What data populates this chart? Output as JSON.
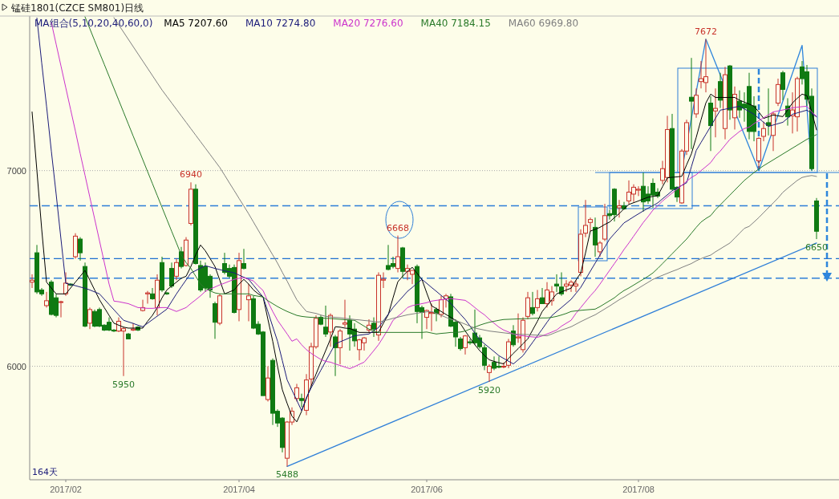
{
  "chart_data": {
    "type": "candlestick",
    "title": "锰硅1801(CZCE SM801)日线",
    "legend_title": "MA组合(5,10,20,40,60,0)",
    "legend": "top left",
    "grid": "y",
    "ylim": [
      5420,
      7790
    ],
    "yticks": [
      6000,
      7000
    ],
    "categories": [
      null,
      null,
      null,
      null,
      null,
      null,
      null,
      "2017/02",
      null,
      null,
      null,
      null,
      null,
      null,
      null,
      null,
      null,
      null,
      null,
      null,
      null,
      null,
      null,
      null,
      null,
      null,
      null,
      null,
      null,
      null,
      null,
      null,
      null,
      null,
      null,
      null,
      null,
      null,
      null,
      null,
      null,
      null,
      null,
      "2017/04",
      null,
      null,
      null,
      null,
      null,
      null,
      null,
      null,
      null,
      null,
      null,
      null,
      null,
      null,
      null,
      null,
      null,
      null,
      null,
      null,
      null,
      null,
      null,
      null,
      null,
      null,
      null,
      null,
      null,
      null,
      null,
      null,
      null,
      null,
      null,
      null,
      null,
      null,
      "2017/06",
      null,
      null,
      null,
      null,
      null,
      null,
      null,
      null,
      null,
      null,
      null,
      null,
      null,
      null,
      null,
      null,
      null,
      null,
      null,
      null,
      null,
      null,
      null,
      null,
      null,
      null,
      null,
      null,
      null,
      null,
      null,
      null,
      null,
      null,
      null,
      null,
      null,
      null,
      null,
      null,
      null,
      null,
      null,
      "2017/08",
      null,
      null,
      null,
      null,
      null,
      null,
      null,
      null,
      null,
      null,
      null,
      null,
      null,
      null,
      null,
      null,
      null,
      null,
      null,
      null,
      null,
      null,
      null,
      null,
      null,
      null,
      null,
      null,
      null,
      null,
      null,
      null,
      null,
      null,
      null,
      null,
      null
    ],
    "ohlc": [
      [
        6430,
        6470,
        6400,
        6440
      ],
      [
        6580,
        6620,
        6370,
        6380
      ],
      [
        6390,
        6400,
        6360,
        6370
      ],
      [
        6310,
        6380,
        6300,
        6335
      ],
      [
        6430,
        6440,
        6260,
        6265
      ],
      [
        6350,
        6370,
        6250,
        6260
      ],
      [
        6330,
        6335,
        6250,
        6330
      ],
      [
        6370,
        6480,
        6360,
        6425
      ],
      [
        6420,
        6425,
        6410,
        6415
      ],
      [
        6560,
        6680,
        6550,
        6665
      ],
      [
        6650,
        6660,
        6540,
        6580
      ],
      [
        6510,
        6530,
        6200,
        6205
      ],
      [
        6220,
        6300,
        6190,
        6290
      ],
      [
        6280,
        6290,
        6200,
        6205
      ],
      [
        6290,
        6300,
        6200,
        6205
      ],
      [
        6210,
        6215,
        6180,
        6185
      ],
      [
        6225,
        6250,
        6180,
        6185
      ],
      [
        6185,
        6190,
        6175,
        6180
      ],
      [
        6180,
        6250,
        6175,
        6230
      ],
      [
        6180,
        6200,
        5950,
        6192
      ],
      [
        6165,
        6170,
        6140,
        6140
      ],
      [
        6185,
        6220,
        6180,
        6190
      ],
      [
        6200,
        6205,
        6180,
        6185
      ],
      [
        6285,
        6340,
        6280,
        6300
      ],
      [
        6370,
        6385,
        6320,
        6375
      ],
      [
        6370,
        6400,
        6340,
        6345
      ],
      [
        6300,
        6470,
        6260,
        6440
      ],
      [
        6530,
        6560,
        6380,
        6390
      ],
      [
        6375,
        6380,
        6365,
        6370
      ],
      [
        6500,
        6530,
        6400,
        6410
      ],
      [
        6460,
        6550,
        6440,
        6530
      ],
      [
        6585,
        6610,
        6500,
        6510
      ],
      [
        6515,
        6660,
        6510,
        6645
      ],
      [
        6730,
        6940,
        6720,
        6905
      ],
      [
        6905,
        6930,
        6520,
        6525
      ],
      [
        6515,
        6540,
        6380,
        6390
      ],
      [
        6510,
        6530,
        6380,
        6400
      ],
      [
        6460,
        6470,
        6350,
        6390
      ],
      [
        6320,
        6330,
        6140,
        6225
      ],
      [
        6220,
        6370,
        6210,
        6360
      ],
      [
        6525,
        6580,
        6470,
        6480
      ],
      [
        6500,
        6520,
        6450,
        6460
      ],
      [
        6505,
        6520,
        6270,
        6275
      ],
      [
        6290,
        6580,
        6230,
        6540
      ],
      [
        6525,
        6600,
        6495,
        6500
      ],
      [
        6340,
        6420,
        6230,
        6360
      ],
      [
        6345,
        6360,
        6190,
        6195
      ],
      [
        6215,
        6230,
        6160,
        6165
      ],
      [
        6175,
        6180,
        5850,
        5850
      ],
      [
        5830,
        6000,
        5820,
        5940
      ],
      [
        6030,
        6040,
        5700,
        5760
      ],
      [
        5770,
        5780,
        5690,
        5710
      ],
      [
        5735,
        5740,
        5560,
        5585
      ],
      [
        5530,
        5720,
        5488,
        5715
      ],
      [
        5715,
        5790,
        5700,
        5770
      ],
      [
        5835,
        5910,
        5820,
        5890
      ],
      [
        5835,
        5860,
        5790,
        5825
      ],
      [
        5775,
        5960,
        5750,
        5930
      ],
      [
        5935,
        6120,
        5900,
        6100
      ],
      [
        6100,
        6260,
        6090,
        6245
      ],
      [
        6250,
        6260,
        6210,
        6215
      ],
      [
        6200,
        6310,
        6150,
        6165
      ],
      [
        6175,
        6270,
        6100,
        6260
      ],
      [
        6150,
        6160,
        5950,
        6095
      ],
      [
        6095,
        6190,
        6010,
        6180
      ],
      [
        6215,
        6340,
        6200,
        6222
      ],
      [
        6235,
        6260,
        6080,
        6165
      ],
      [
        6190,
        6220,
        6100,
        6130
      ],
      [
        6085,
        6140,
        6030,
        6135
      ],
      [
        6120,
        6150,
        6080,
        6145
      ],
      [
        6185,
        6240,
        6170,
        6210
      ],
      [
        6220,
        6250,
        6150,
        6190
      ],
      [
        6160,
        6480,
        6130,
        6465
      ],
      [
        6440,
        6480,
        6400,
        6445
      ],
      [
        6515,
        6620,
        6490,
        6495
      ],
      [
        6525,
        6560,
        6500,
        6510
      ],
      [
        6500,
        6668,
        6480,
        6560
      ],
      [
        6605,
        6610,
        6450,
        6485
      ],
      [
        6485,
        6520,
        6440,
        6500
      ],
      [
        6470,
        6490,
        6420,
        6490
      ],
      [
        6510,
        6520,
        6220,
        6280
      ],
      [
        6300,
        6310,
        6140,
        6275
      ],
      [
        6250,
        6290,
        6190,
        6285
      ],
      [
        6270,
        6320,
        6180,
        6275
      ],
      [
        6290,
        6300,
        6230,
        6270
      ],
      [
        6265,
        6360,
        6250,
        6340
      ],
      [
        6345,
        6370,
        6300,
        6360
      ],
      [
        6355,
        6370,
        6200,
        6205
      ],
      [
        6225,
        6240,
        6100,
        6150
      ],
      [
        6140,
        6150,
        6080,
        6090
      ],
      [
        6095,
        6160,
        6060,
        6155
      ],
      [
        6125,
        6140,
        6110,
        6120
      ],
      [
        6170,
        6290,
        6110,
        6120
      ],
      [
        6145,
        6160,
        6090,
        6100
      ],
      [
        6095,
        6110,
        5980,
        6005
      ],
      [
        5968,
        6010,
        5920,
        6000
      ],
      [
        6020,
        6050,
        5980,
        5990
      ],
      [
        6000,
        6050,
        5990,
        5995
      ],
      [
        6000,
        6020,
        5990,
        6000
      ],
      [
        6005,
        6140,
        5990,
        6125
      ],
      [
        6180,
        6210,
        6100,
        6110
      ],
      [
        6145,
        6270,
        6120,
        6150
      ],
      [
        6085,
        6250,
        6070,
        6235
      ],
      [
        6255,
        6380,
        6240,
        6350
      ],
      [
        6300,
        6380,
        6260,
        6270
      ],
      [
        6300,
        6390,
        6280,
        6345
      ],
      [
        6350,
        6400,
        6320,
        6320
      ],
      [
        6320,
        6430,
        6300,
        6390
      ],
      [
        6335,
        6410,
        6310,
        6380
      ],
      [
        6420,
        6470,
        6380,
        6410
      ],
      [
        6405,
        6480,
        6360,
        6370
      ],
      [
        6410,
        6440,
        6380,
        6420
      ],
      [
        6415,
        6440,
        6380,
        6430
      ],
      [
        6410,
        6440,
        6380,
        6420
      ],
      [
        6480,
        6700,
        6460,
        6675
      ],
      [
        6680,
        6850,
        6660,
        6720
      ],
      [
        6735,
        6760,
        6690,
        6750
      ],
      [
        6710,
        6760,
        6560,
        6620
      ],
      [
        6585,
        6640,
        6560,
        6630
      ],
      [
        6650,
        6830,
        6640,
        6770
      ],
      [
        6780,
        6800,
        6750,
        6770
      ],
      [
        6905,
        6910,
        6740,
        6775
      ],
      [
        6810,
        6850,
        6760,
        6820
      ],
      [
        6820,
        6840,
        6800,
        6805
      ],
      [
        6845,
        6950,
        6830,
        6890
      ],
      [
        6880,
        6930,
        6840,
        6915
      ],
      [
        6900,
        6920,
        6870,
        6905
      ],
      [
        6920,
        6990,
        6790,
        6840
      ],
      [
        6880,
        6920,
        6830,
        6845
      ],
      [
        6935,
        6960,
        6810,
        6875
      ],
      [
        6890,
        6910,
        6860,
        6870
      ],
      [
        6950,
        7050,
        6930,
        7010
      ],
      [
        6965,
        7280,
        6940,
        7210
      ],
      [
        7215,
        7290,
        6900,
        6905
      ],
      [
        6915,
        6920,
        6840,
        6865
      ],
      [
        6835,
        7110,
        6830,
        7100
      ],
      [
        7100,
        7260,
        7080,
        7245
      ],
      [
        7375,
        7576,
        7110,
        7355
      ],
      [
        7290,
        7420,
        7270,
        7385
      ],
      [
        7455,
        7560,
        7420,
        7470
      ],
      [
        7450,
        7672,
        7400,
        7480
      ],
      [
        7345,
        7380,
        7100,
        7230
      ],
      [
        7305,
        7420,
        7170,
        7318
      ],
      [
        7455,
        7500,
        7320,
        7360
      ],
      [
        7215,
        7530,
        7160,
        7490
      ],
      [
        7535,
        7540,
        7260,
        7310
      ],
      [
        7270,
        7430,
        7210,
        7390
      ],
      [
        7355,
        7410,
        7270,
        7310
      ],
      [
        7340,
        7400,
        7250,
        7320
      ],
      [
        7430,
        7500,
        7160,
        7200
      ],
      [
        7330,
        7380,
        7150,
        7200
      ],
      [
        7050,
        7170,
        7010,
        7165
      ],
      [
        7175,
        7250,
        7150,
        7215
      ],
      [
        7245,
        7420,
        7180,
        7230
      ],
      [
        7180,
        7300,
        7100,
        7290
      ],
      [
        7345,
        7470,
        7330,
        7440
      ],
      [
        7500,
        7510,
        7360,
        7415
      ],
      [
        7330,
        7370,
        7230,
        7275
      ],
      [
        7280,
        7400,
        7190,
        7310
      ],
      [
        7275,
        7480,
        7200,
        7470
      ],
      [
        7530,
        7560,
        7440,
        7470
      ],
      [
        7505,
        7540,
        7330,
        7365
      ],
      [
        7380,
        7420,
        7000,
        7010
      ],
      [
        6845,
        6860,
        6650,
        6690
      ]
    ],
    "series": [
      {
        "name": "MA5 7207.60",
        "type": "line",
        "color": "#000000",
        "values": [
          7300,
          7000,
          6700,
          6430,
          6400,
          6370,
          6370,
          6370,
          6400,
          6430,
          6460,
          6490,
          6440,
          6390,
          6340,
          6300,
          6260,
          6220,
          6210,
          6200,
          6195,
          6195,
          6195,
          6195,
          6230,
          6260,
          6300,
          6350,
          6390,
          6410,
          6430,
          6450,
          6460,
          6510,
          6570,
          6620,
          6590,
          6550,
          6510,
          6440,
          6370,
          6380,
          6390,
          6420,
          6444,
          6420,
          6390,
          6370,
          6354,
          6240,
          6128,
          6000,
          5880,
          5810,
          5745,
          5716,
          5770,
          5835,
          5900,
          5960,
          6021,
          6080,
          6140,
          6202,
          6200,
          6195,
          6193,
          6183,
          6173,
          6173,
          6173,
          6173,
          6173,
          6220,
          6263,
          6350,
          6432,
          6460,
          6485,
          6506,
          6475,
          6444,
          6375,
          6309,
          6295,
          6280,
          6265,
          6250,
          6235,
          6218,
          6180,
          6145,
          6110,
          6080,
          6055,
          6033,
          6025,
          6018,
          6012,
          6040,
          6066,
          6090,
          6115,
          6140,
          6185,
          6230,
          6280,
          6310,
          6340,
          6370,
          6380,
          6390,
          6399,
          6440,
          6477,
          6580,
          6691,
          6700,
          6710,
          6725,
          6737,
          6760,
          6780,
          6805,
          6827,
          6836,
          6845,
          6855,
          6864,
          6868,
          6872,
          6918,
          6963,
          6966,
          6968,
          6971,
          7030,
          7086,
          7170,
          7260,
          7346,
          7391,
          7374,
          7374,
          7374,
          7374,
          7374,
          7360,
          7350,
          7340,
          7329,
          7300,
          7267,
          7275,
          7284,
          7280,
          7276,
          7310,
          7346,
          7370,
          7391,
          7383,
          7300,
          7208
        ]
      },
      {
        "name": "MA10 7274.80",
        "type": "line",
        "color": "#1c1c7a",
        "values": [
          null,
          7780,
          7550,
          7330,
          7100,
          6880,
          6650,
          6424,
          6418,
          6412,
          6405,
          6399,
          6390,
          6380,
          6370,
          6343,
          6316,
          6289,
          6262,
          6235,
          6227,
          6219,
          6210,
          6202,
          6220,
          6238,
          6256,
          6274,
          6292,
          6331,
          6370,
          6406,
          6441,
          6477,
          6489,
          6502,
          6514,
          6507,
          6500,
          6494,
          6488,
          6483,
          6477,
          6466,
          6455,
          6444,
          6414,
          6384,
          6354,
          6279,
          6203,
          6128,
          6029,
          5930,
          5878,
          5826,
          5773,
          5840,
          5890,
          5935,
          5980,
          6025,
          6070,
          6115,
          6125,
          6135,
          6146,
          6156,
          6159,
          6162,
          6165,
          6182,
          6198,
          6232,
          6266,
          6300,
          6328,
          6355,
          6383,
          6403,
          6424,
          6444,
          6424,
          6403,
          6383,
          6362,
          6342,
          6321,
          6294,
          6266,
          6239,
          6205,
          6170,
          6136,
          6115,
          6095,
          6075,
          6054,
          6040,
          6026,
          6012,
          6033,
          6054,
          6088,
          6122,
          6156,
          6190,
          6225,
          6259,
          6280,
          6300,
          6321,
          6342,
          6372,
          6403,
          6444,
          6486,
          6527,
          6568,
          6609,
          6650,
          6678,
          6705,
          6733,
          6748,
          6764,
          6779,
          6794,
          6808,
          6821,
          6835,
          6856,
          6876,
          6897,
          6911,
          6924,
          6938,
          7020,
          7103,
          7144,
          7185,
          7226,
          7268,
          7309,
          7314,
          7319,
          7324,
          7329,
          7315,
          7302,
          7288,
          7267,
          7247,
          7226,
          7233,
          7240,
          7247,
          7268,
          7288,
          7295,
          7302,
          7309,
          7292,
          7275
        ]
      },
      {
        "name": "MA20 7276.60",
        "type": "line",
        "color": "#cc33cc",
        "values": [
          null,
          null,
          null,
          null,
          7757,
          7646,
          7535,
          7424,
          7313,
          7202,
          7087,
          6976,
          6864,
          6753,
          6642,
          6531,
          6420,
          6333,
          6330,
          6325,
          6320,
          6310,
          6300,
          6298,
          6296,
          6296,
          6298,
          6300,
          6300,
          6290,
          6280,
          6290,
          6300,
          6321,
          6340,
          6360,
          6383,
          6395,
          6405,
          6416,
          6425,
          6435,
          6444,
          6450,
          6453,
          6445,
          6436,
          6410,
          6387,
          6330,
          6280,
          6235,
          6200,
          6165,
          6128,
          6140,
          6110,
          6085,
          6066,
          6050,
          6035,
          6025,
          6021,
          6012,
          6004,
          5996,
          5988,
          5998,
          6010,
          6021,
          6050,
          6080,
          6111,
          6150,
          6190,
          6235,
          6255,
          6275,
          6300,
          6310,
          6315,
          6320,
          6325,
          6333,
          6337,
          6340,
          6343,
          6346,
          6343,
          6340,
          6337,
          6320,
          6300,
          6280,
          6263,
          6240,
          6220,
          6200,
          6185,
          6175,
          6165,
          6158,
          6156,
          6152,
          6150,
          6148,
          6155,
          6165,
          6175,
          6185,
          6205,
          6220,
          6235,
          6270,
          6300,
          6330,
          6360,
          6387,
          6420,
          6455,
          6490,
          6525,
          6560,
          6597,
          6630,
          6665,
          6700,
          6735,
          6765,
          6798,
          6820,
          6845,
          6865,
          6885,
          6905,
          6925,
          6945,
          6965,
          6979,
          7000,
          7020,
          7041,
          7075,
          7100,
          7130,
          7160,
          7180,
          7200,
          7215,
          7222,
          7240,
          7255,
          7270,
          7285,
          7300,
          7305,
          7310,
          7315,
          7321,
          7324,
          7327,
          7329,
          7300,
          7277
        ]
      },
      {
        "name": "MA40 7184.15",
        "type": "line",
        "color": "#2a7a2a",
        "values": [
          null,
          null,
          null,
          null,
          null,
          null,
          null,
          null,
          null,
          null,
          null,
          7786,
          7725,
          7664,
          7603,
          7543,
          7482,
          7421,
          7360,
          7299,
          7238,
          7177,
          7117,
          7056,
          6995,
          6934,
          6873,
          6812,
          6751,
          6690,
          6630,
          6569,
          6530,
          6500,
          6460,
          6420,
          6399,
          6385,
          6375,
          6370,
          6370,
          6370,
          6370,
          6370,
          6370,
          6370,
          6362,
          6358,
          6354,
          6335,
          6320,
          6305,
          6292,
          6280,
          6270,
          6260,
          6255,
          6252,
          6250,
          6249,
          6247,
          6245,
          6244,
          6242,
          6240,
          6238,
          6236,
          6235,
          6220,
          6205,
          6190,
          6180,
          6173,
          6173,
          6173,
          6173,
          6173,
          6173,
          6173,
          6173,
          6173,
          6173,
          6175,
          6170,
          6165,
          6168,
          6170,
          6173,
          6173,
          6175,
          6180,
          6190,
          6200,
          6210,
          6218,
          6225,
          6230,
          6235,
          6239,
          6240,
          6241,
          6242,
          6243,
          6244,
          6245,
          6246,
          6247,
          6247,
          6250,
          6255,
          6262,
          6270,
          6280,
          6283,
          6286,
          6288,
          6290,
          6292,
          6305,
          6320,
          6335,
          6350,
          6370,
          6387,
          6400,
          6415,
          6430,
          6445,
          6460,
          6477,
          6500,
          6525,
          6550,
          6575,
          6600,
          6625,
          6650,
          6680,
          6710,
          6737,
          6755,
          6770,
          6800,
          6825,
          6850,
          6875,
          6900,
          6925,
          6950,
          6970,
          6990,
          7008,
          7025,
          7040,
          7055,
          7070,
          7085,
          7100,
          7115,
          7130,
          7145,
          7160,
          7172,
          7184
        ]
      },
      {
        "name": "MA60 6969.80",
        "type": "line",
        "color": "#808080",
        "values": [
          null,
          null,
          null,
          null,
          null,
          null,
          null,
          null,
          null,
          null,
          null,
          null,
          null,
          null,
          null,
          null,
          null,
          7782,
          7745,
          7708,
          7671,
          7634,
          7597,
          7560,
          7523,
          7486,
          7449,
          7412,
          7379,
          7346,
          7313,
          7280,
          7247,
          7214,
          7181,
          7148,
          7115,
          7082,
          7049,
          7016,
          6977,
          6937,
          6898,
          6858,
          6819,
          6779,
          6737,
          6695,
          6653,
          6611,
          6569,
          6527,
          6480,
          6435,
          6387,
          6340,
          6309,
          6280,
          6275,
          6270,
          6262,
          6255,
          6252,
          6250,
          6248,
          6245,
          6242,
          6239,
          6237,
          6234,
          6232,
          6229,
          6226,
          6232,
          6238,
          6245,
          6251,
          6257,
          6263,
          6267,
          6271,
          6275,
          6278,
          6280,
          6270,
          6260,
          6250,
          6240,
          6235,
          6225,
          6215,
          6205,
          6195,
          6190,
          6185,
          6180,
          6177,
          6174,
          6171,
          6168,
          6165,
          6164,
          6163,
          6162,
          6160,
          6159,
          6158,
          6156,
          6165,
          6175,
          6185,
          6193,
          6202,
          6215,
          6228,
          6240,
          6252,
          6263,
          6278,
          6293,
          6308,
          6324,
          6340,
          6354,
          6369,
          6384,
          6399,
          6414,
          6429,
          6444,
          6455,
          6465,
          6475,
          6485,
          6494,
          6505,
          6515,
          6525,
          6539,
          6550,
          6560,
          6568,
          6585,
          6600,
          6615,
          6630,
          6655,
          6680,
          6705,
          6715,
          6737,
          6760,
          6785,
          6810,
          6835,
          6860,
          6889,
          6910,
          6930,
          6950,
          6965,
          6971,
          6975,
          6970
        ]
      },
      {
        "type": "line",
        "color": "#2f7fd8",
        "values": [
          null,
          null,
          null,
          null,
          null,
          null,
          null,
          null,
          null,
          null,
          null,
          null,
          null,
          null,
          null,
          null,
          null,
          null,
          null,
          null,
          null,
          null,
          null,
          null,
          null,
          null,
          null,
          null,
          null,
          null,
          null,
          null,
          null,
          null,
          null,
          null,
          null,
          null,
          null,
          null,
          null,
          null,
          null,
          null,
          null,
          null,
          null,
          null,
          null,
          null,
          null,
          null,
          null,
          5488,
          null,
          null,
          null,
          null,
          null,
          null,
          null,
          null,
          null,
          null,
          null,
          null,
          null,
          null,
          null,
          null,
          null,
          null,
          null,
          null,
          null,
          null,
          null,
          null,
          null,
          null,
          null,
          null,
          null,
          null,
          null,
          null,
          null,
          null,
          null,
          null,
          null,
          null,
          null,
          null,
          null,
          null,
          null,
          null,
          null,
          null,
          null,
          null,
          null,
          null,
          null,
          null,
          null,
          null,
          null,
          null,
          null,
          null,
          null,
          null,
          null,
          null,
          null,
          null,
          null,
          null,
          null,
          null,
          null,
          null,
          null,
          null,
          null,
          null,
          null,
          null,
          null,
          null,
          null,
          null,
          null,
          null,
          null,
          null,
          null,
          null,
          null,
          null,
          null,
          null,
          null,
          null,
          null,
          null,
          null,
          null,
          null,
          null,
          null,
          null,
          null,
          null,
          null,
          null,
          null,
          null,
          null,
          null,
          null,
          6630
        ]
      },
      {
        "type": "line",
        "color": "#2f86dc",
        "values": [
          null,
          null,
          null,
          null,
          null,
          null,
          null,
          null,
          null,
          null,
          null,
          null,
          null,
          null,
          null,
          null,
          null,
          null,
          null,
          null,
          null,
          null,
          null,
          null,
          null,
          null,
          null,
          null,
          null,
          null,
          null,
          null,
          null,
          null,
          null,
          null,
          null,
          null,
          null,
          null,
          null,
          null,
          null,
          null,
          null,
          null,
          null,
          null,
          null,
          null,
          null,
          null,
          null,
          null,
          null,
          null,
          null,
          null,
          null,
          null,
          null,
          null,
          null,
          null,
          null,
          null,
          null,
          null,
          null,
          null,
          null,
          null,
          null,
          null,
          null,
          null,
          null,
          null,
          null,
          null,
          null,
          null,
          null,
          null,
          null,
          null,
          null,
          null,
          null,
          null,
          null,
          null,
          null,
          null,
          null,
          null,
          null,
          null,
          null,
          null,
          null,
          null,
          null,
          null,
          null,
          null,
          null,
          null,
          null,
          null,
          null,
          null,
          null,
          null,
          null,
          null,
          null,
          null,
          null,
          null,
          null,
          null,
          null,
          null,
          null,
          null,
          null,
          null,
          null,
          null,
          null,
          null,
          null,
          null,
          null,
          7000,
          null,
          null,
          null,
          null,
          7672,
          null,
          null,
          null,
          null,
          null,
          null,
          null,
          null,
          null,
          null,
          7000,
          null,
          null,
          null,
          null,
          null,
          null,
          null,
          null,
          7640,
          null,
          7000,
          null
        ]
      }
    ],
    "ref_lines": [
      {
        "axis": "y",
        "value": 6820,
        "color": "#2f7fd8",
        "line_style": "dashed"
      },
      {
        "axis": "y",
        "value": 6550,
        "color": "#1f6fd0",
        "line_style": "dashed"
      },
      {
        "axis": "y",
        "value": 6450,
        "color": "#2f7fd8",
        "line_style": "dashed"
      }
    ],
    "annotations": [
      {
        "text": "7672",
        "y": 7672
      },
      {
        "text": "6940",
        "y": 6940
      },
      {
        "text": "6668",
        "y": 6668
      },
      {
        "text": "5950",
        "y": 5950
      },
      {
        "text": "5920",
        "y": 5920
      },
      {
        "text": "5488",
        "y": 5488
      },
      {
        "text": "6650",
        "y": 6650
      },
      "164天"
    ]
  }
}
